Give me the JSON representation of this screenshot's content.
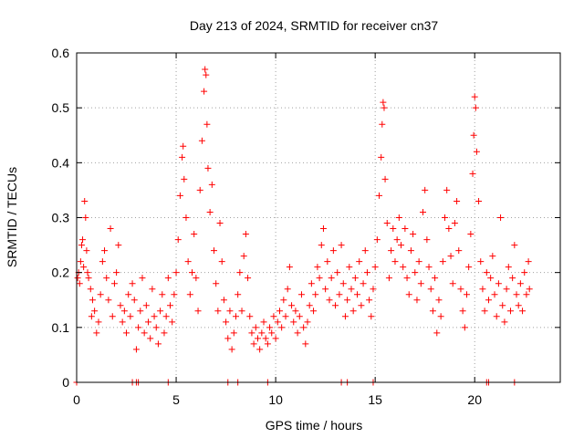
{
  "chart_data": {
    "type": "scatter",
    "title": "Day 213 of 2024, SRMTID for receiver cn37",
    "xlabel": "GPS time / hours",
    "ylabel": "SRMTID / TECUs",
    "xlim": [
      0,
      24.3
    ],
    "ylim": [
      0,
      0.6
    ],
    "xticks": [
      0,
      5,
      10,
      15,
      20
    ],
    "xtick_labels": [
      "0",
      "5",
      "10",
      "15",
      "20"
    ],
    "yticks": [
      0,
      0.1,
      0.2,
      0.3,
      0.4,
      0.5,
      0.6
    ],
    "ytick_labels": [
      "0",
      "0.1",
      "0.2",
      "0.3",
      "0.4",
      "0.5",
      "0.6"
    ],
    "grid": true,
    "marker": "plus",
    "color": "#ff0000",
    "series": [
      {
        "name": "SRMTID",
        "points": [
          [
            0.05,
            0.19
          ],
          [
            0.1,
            0.2
          ],
          [
            0.15,
            0.18
          ],
          [
            0.2,
            0.22
          ],
          [
            0.25,
            0.25
          ],
          [
            0.3,
            0.26
          ],
          [
            0.35,
            0.21
          ],
          [
            0.4,
            0.33
          ],
          [
            0.45,
            0.3
          ],
          [
            0.5,
            0.24
          ],
          [
            0.55,
            0.2
          ],
          [
            0.6,
            0.19
          ],
          [
            0.7,
            0.17
          ],
          [
            0.75,
            0.12
          ],
          [
            0.8,
            0.15
          ],
          [
            0.9,
            0.13
          ],
          [
            1.0,
            0.09
          ],
          [
            1.1,
            0.11
          ],
          [
            1.2,
            0.16
          ],
          [
            1.3,
            0.22
          ],
          [
            1.4,
            0.24
          ],
          [
            1.5,
            0.19
          ],
          [
            1.6,
            0.15
          ],
          [
            1.7,
            0.28
          ],
          [
            1.8,
            0.12
          ],
          [
            1.9,
            0.18
          ],
          [
            2.0,
            0.2
          ],
          [
            2.1,
            0.25
          ],
          [
            2.2,
            0.14
          ],
          [
            2.3,
            0.11
          ],
          [
            2.4,
            0.13
          ],
          [
            2.5,
            0.09
          ],
          [
            2.6,
            0.16
          ],
          [
            2.7,
            0.12
          ],
          [
            2.8,
            0.18
          ],
          [
            2.9,
            0.15
          ],
          [
            3.0,
            0.06
          ],
          [
            3.1,
            0.1
          ],
          [
            3.2,
            0.13
          ],
          [
            3.3,
            0.19
          ],
          [
            3.4,
            0.09
          ],
          [
            3.5,
            0.14
          ],
          [
            3.6,
            0.11
          ],
          [
            3.7,
            0.08
          ],
          [
            3.8,
            0.17
          ],
          [
            3.9,
            0.12
          ],
          [
            4.0,
            0.1
          ],
          [
            4.1,
            0.07
          ],
          [
            4.2,
            0.13
          ],
          [
            4.3,
            0.16
          ],
          [
            4.4,
            0.09
          ],
          [
            4.5,
            0.12
          ],
          [
            4.6,
            0.19
          ],
          [
            4.7,
            0.14
          ],
          [
            4.8,
            0.11
          ],
          [
            4.9,
            0.16
          ],
          [
            5.0,
            0.2
          ],
          [
            5.1,
            0.26
          ],
          [
            5.2,
            0.34
          ],
          [
            5.3,
            0.41
          ],
          [
            5.35,
            0.43
          ],
          [
            5.4,
            0.37
          ],
          [
            5.5,
            0.3
          ],
          [
            5.6,
            0.22
          ],
          [
            5.7,
            0.16
          ],
          [
            5.8,
            0.2
          ],
          [
            5.9,
            0.27
          ],
          [
            6.0,
            0.19
          ],
          [
            6.1,
            0.13
          ],
          [
            6.2,
            0.35
          ],
          [
            6.3,
            0.44
          ],
          [
            6.4,
            0.53
          ],
          [
            6.45,
            0.57
          ],
          [
            6.5,
            0.56
          ],
          [
            6.55,
            0.47
          ],
          [
            6.6,
            0.39
          ],
          [
            6.7,
            0.31
          ],
          [
            6.8,
            0.36
          ],
          [
            6.9,
            0.24
          ],
          [
            7.0,
            0.18
          ],
          [
            7.1,
            0.13
          ],
          [
            7.2,
            0.29
          ],
          [
            7.3,
            0.22
          ],
          [
            7.4,
            0.15
          ],
          [
            7.5,
            0.11
          ],
          [
            7.6,
            0.08
          ],
          [
            7.7,
            0.13
          ],
          [
            7.8,
            0.06
          ],
          [
            7.9,
            0.09
          ],
          [
            8.0,
            0.12
          ],
          [
            8.1,
            0.16
          ],
          [
            8.2,
            0.2
          ],
          [
            8.3,
            0.13
          ],
          [
            8.4,
            0.23
          ],
          [
            8.5,
            0.27
          ],
          [
            8.6,
            0.19
          ],
          [
            8.7,
            0.12
          ],
          [
            8.8,
            0.09
          ],
          [
            8.9,
            0.07
          ],
          [
            9.0,
            0.1
          ],
          [
            9.1,
            0.08
          ],
          [
            9.2,
            0.06
          ],
          [
            9.3,
            0.09
          ],
          [
            9.4,
            0.11
          ],
          [
            9.5,
            0.08
          ],
          [
            9.6,
            0.07
          ],
          [
            9.7,
            0.1
          ],
          [
            9.8,
            0.09
          ],
          [
            9.9,
            0.12
          ],
          [
            10.0,
            0.08
          ],
          [
            10.1,
            0.11
          ],
          [
            10.2,
            0.13
          ],
          [
            10.3,
            0.1
          ],
          [
            10.4,
            0.15
          ],
          [
            10.5,
            0.12
          ],
          [
            10.6,
            0.17
          ],
          [
            10.7,
            0.21
          ],
          [
            10.8,
            0.14
          ],
          [
            10.9,
            0.11
          ],
          [
            11.0,
            0.13
          ],
          [
            11.1,
            0.09
          ],
          [
            11.2,
            0.12
          ],
          [
            11.3,
            0.16
          ],
          [
            11.4,
            0.1
          ],
          [
            11.5,
            0.07
          ],
          [
            11.6,
            0.11
          ],
          [
            11.7,
            0.14
          ],
          [
            11.8,
            0.18
          ],
          [
            11.9,
            0.13
          ],
          [
            12.0,
            0.16
          ],
          [
            12.1,
            0.21
          ],
          [
            12.2,
            0.19
          ],
          [
            12.3,
            0.25
          ],
          [
            12.4,
            0.28
          ],
          [
            12.5,
            0.17
          ],
          [
            12.6,
            0.22
          ],
          [
            12.7,
            0.15
          ],
          [
            12.8,
            0.19
          ],
          [
            12.9,
            0.24
          ],
          [
            13.0,
            0.14
          ],
          [
            13.1,
            0.2
          ],
          [
            13.2,
            0.16
          ],
          [
            13.3,
            0.25
          ],
          [
            13.4,
            0.18
          ],
          [
            13.5,
            0.12
          ],
          [
            13.6,
            0.15
          ],
          [
            13.7,
            0.21
          ],
          [
            13.8,
            0.17
          ],
          [
            13.9,
            0.13
          ],
          [
            14.0,
            0.19
          ],
          [
            14.1,
            0.16
          ],
          [
            14.2,
            0.22
          ],
          [
            14.3,
            0.14
          ],
          [
            14.4,
            0.18
          ],
          [
            14.5,
            0.24
          ],
          [
            14.6,
            0.2
          ],
          [
            14.7,
            0.15
          ],
          [
            14.8,
            0.12
          ],
          [
            14.9,
            0.17
          ],
          [
            15.0,
            0.21
          ],
          [
            15.1,
            0.26
          ],
          [
            15.2,
            0.34
          ],
          [
            15.3,
            0.41
          ],
          [
            15.35,
            0.47
          ],
          [
            15.4,
            0.51
          ],
          [
            15.45,
            0.5
          ],
          [
            15.5,
            0.37
          ],
          [
            15.6,
            0.29
          ],
          [
            15.7,
            0.19
          ],
          [
            15.8,
            0.24
          ],
          [
            15.9,
            0.28
          ],
          [
            16.0,
            0.22
          ],
          [
            16.1,
            0.26
          ],
          [
            16.2,
            0.3
          ],
          [
            16.3,
            0.25
          ],
          [
            16.4,
            0.21
          ],
          [
            16.5,
            0.28
          ],
          [
            16.6,
            0.19
          ],
          [
            16.7,
            0.16
          ],
          [
            16.8,
            0.24
          ],
          [
            16.9,
            0.27
          ],
          [
            17.0,
            0.2
          ],
          [
            17.1,
            0.15
          ],
          [
            17.2,
            0.22
          ],
          [
            17.3,
            0.18
          ],
          [
            17.4,
            0.31
          ],
          [
            17.5,
            0.35
          ],
          [
            17.6,
            0.26
          ],
          [
            17.7,
            0.21
          ],
          [
            17.8,
            0.17
          ],
          [
            17.9,
            0.13
          ],
          [
            18.0,
            0.19
          ],
          [
            18.1,
            0.09
          ],
          [
            18.2,
            0.15
          ],
          [
            18.3,
            0.12
          ],
          [
            18.4,
            0.22
          ],
          [
            18.5,
            0.3
          ],
          [
            18.6,
            0.35
          ],
          [
            18.7,
            0.28
          ],
          [
            18.8,
            0.23
          ],
          [
            18.9,
            0.18
          ],
          [
            19.0,
            0.29
          ],
          [
            19.1,
            0.33
          ],
          [
            19.2,
            0.24
          ],
          [
            19.3,
            0.17
          ],
          [
            19.4,
            0.13
          ],
          [
            19.5,
            0.1
          ],
          [
            19.6,
            0.16
          ],
          [
            19.7,
            0.21
          ],
          [
            19.8,
            0.27
          ],
          [
            19.9,
            0.38
          ],
          [
            19.95,
            0.45
          ],
          [
            20.0,
            0.52
          ],
          [
            20.05,
            0.5
          ],
          [
            20.1,
            0.42
          ],
          [
            20.2,
            0.33
          ],
          [
            20.3,
            0.22
          ],
          [
            20.4,
            0.17
          ],
          [
            20.5,
            0.13
          ],
          [
            20.6,
            0.2
          ],
          [
            20.7,
            0.15
          ],
          [
            20.8,
            0.19
          ],
          [
            20.9,
            0.23
          ],
          [
            21.0,
            0.16
          ],
          [
            21.1,
            0.12
          ],
          [
            21.2,
            0.18
          ],
          [
            21.3,
            0.3
          ],
          [
            21.4,
            0.14
          ],
          [
            21.5,
            0.11
          ],
          [
            21.6,
            0.17
          ],
          [
            21.7,
            0.21
          ],
          [
            21.8,
            0.13
          ],
          [
            21.9,
            0.19
          ],
          [
            22.0,
            0.25
          ],
          [
            22.1,
            0.16
          ],
          [
            22.2,
            0.14
          ],
          [
            22.3,
            0.18
          ],
          [
            22.4,
            0.13
          ],
          [
            22.5,
            0.2
          ],
          [
            22.6,
            0.16
          ],
          [
            22.7,
            0.22
          ],
          [
            22.75,
            0.17
          ],
          [
            0.0,
            0.0
          ],
          [
            2.8,
            0.0
          ],
          [
            3.0,
            0.0
          ],
          [
            3.1,
            0.0
          ],
          [
            4.6,
            0.0
          ],
          [
            7.6,
            0.0
          ],
          [
            8.1,
            0.0
          ],
          [
            9.6,
            0.0
          ],
          [
            13.3,
            0.0
          ],
          [
            13.6,
            0.0
          ],
          [
            14.9,
            0.0
          ],
          [
            20.6,
            0.0
          ],
          [
            20.7,
            0.0
          ],
          [
            22.0,
            0.0
          ]
        ]
      }
    ]
  }
}
